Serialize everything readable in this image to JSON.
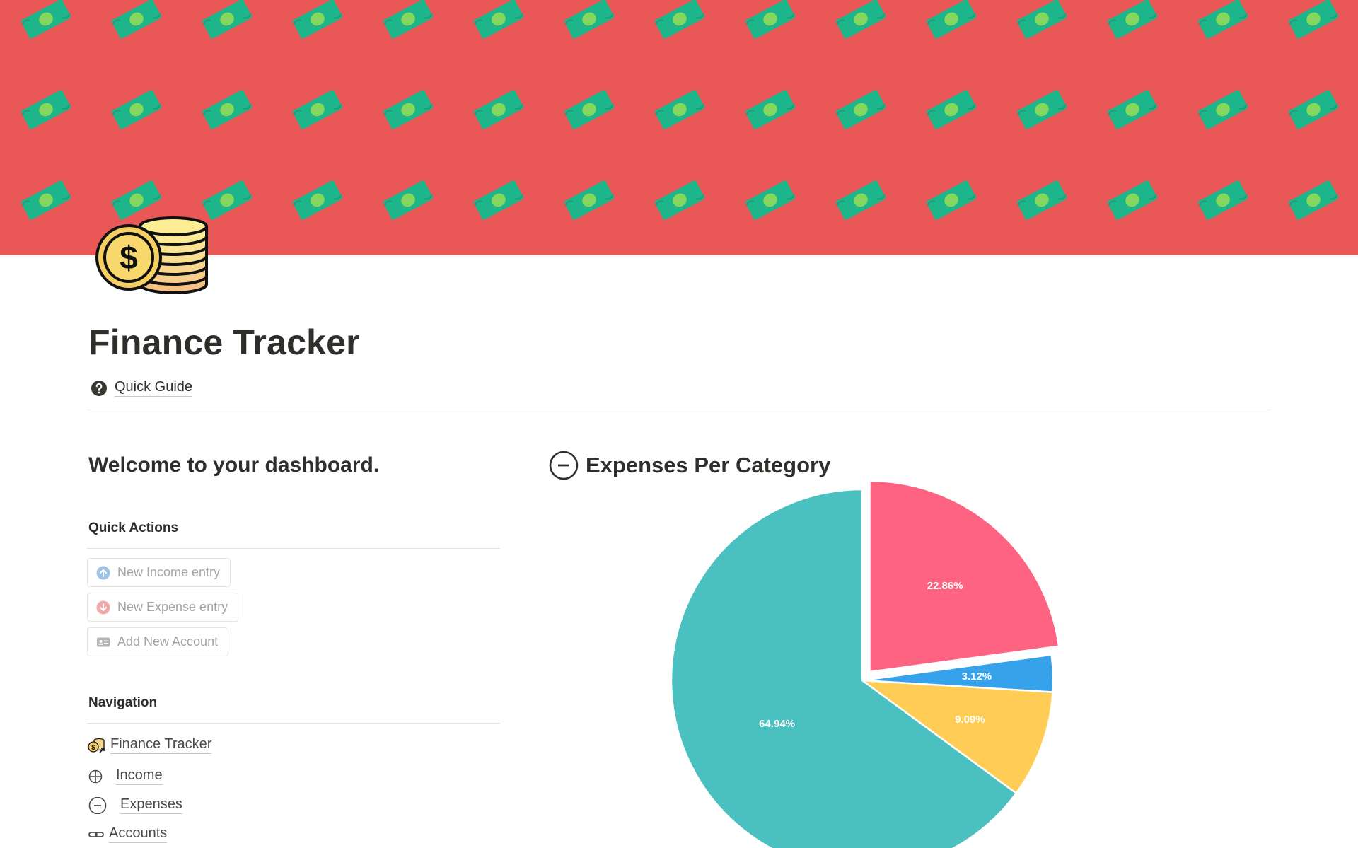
{
  "page": {
    "title": "Finance Tracker",
    "icon": "coins-dollar-icon",
    "cover": {
      "background_color": "#e95756",
      "pattern": "dollar-bill-icon",
      "bill_color": "#1fb58a",
      "bill_center_color": "#86d65c"
    }
  },
  "quick_guide": {
    "label": "Quick Guide",
    "icon": "question-circle-icon"
  },
  "dashboard": {
    "welcome": "Welcome to your dashboard.",
    "quick_actions": {
      "heading": "Quick Actions",
      "buttons": [
        {
          "label": "New Income entry",
          "icon": "arrow-up-circle-icon",
          "icon_color": "#9fc3e7"
        },
        {
          "label": "New Expense entry",
          "icon": "arrow-down-circle-icon",
          "icon_color": "#f0a9a7"
        },
        {
          "label": "Add New Account",
          "icon": "id-card-icon",
          "icon_color": "#b5b4b0"
        }
      ]
    },
    "navigation": {
      "heading": "Navigation",
      "items": [
        {
          "label": "Finance Tracker",
          "icon": "coins-dollar-icon"
        },
        {
          "label": "Income",
          "icon": "plus-circle-icon"
        },
        {
          "label": "Expenses",
          "icon": "minus-circle-icon"
        },
        {
          "label": "Accounts",
          "icon": "link-icon"
        }
      ]
    }
  },
  "chart_section": {
    "title": "Expenses Per Category",
    "icon": "minus-circle-icon"
  },
  "chart_data": {
    "type": "pie",
    "title": "",
    "start_angle_deg": 0,
    "slices": [
      {
        "value": 22.86,
        "label": "22.86%",
        "color": "#ff6382"
      },
      {
        "value": 3.12,
        "label": "3.12%",
        "color": "#36a2eb"
      },
      {
        "value": 9.09,
        "label": "9.09%",
        "color": "#ffcd56"
      },
      {
        "value": 64.94,
        "label": "64.94%",
        "color": "#4bc0c0"
      }
    ],
    "exploded_slice_index": 0,
    "legend": "none"
  }
}
